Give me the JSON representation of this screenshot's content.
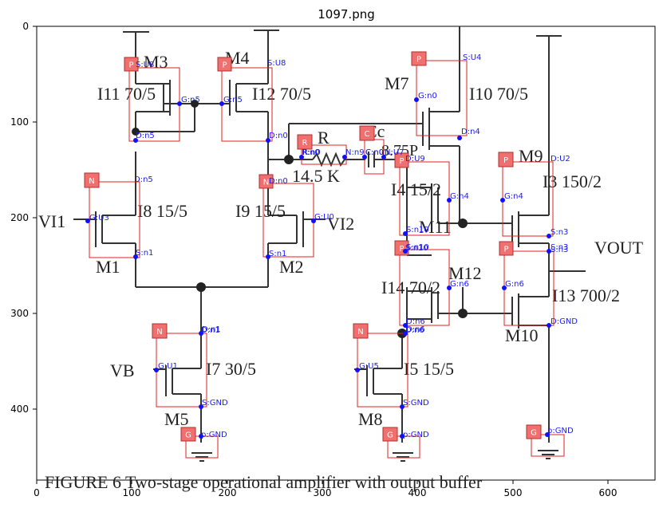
{
  "title": "1097.png",
  "axes": {
    "x_ticks": [
      "0",
      "100",
      "200",
      "300",
      "400",
      "500",
      "600"
    ],
    "y_ticks": [
      "0",
      "100",
      "200",
      "300",
      "400"
    ]
  },
  "caption": {
    "figure_text": "FIGURE 6  Two-stage operational amplifier with output buffer",
    "transistors": [
      "M3",
      "M4",
      "M7",
      "M1",
      "M2",
      "M11",
      "M9",
      "M12",
      "M10",
      "M5",
      "M8"
    ],
    "sizes": [
      "I11 70/5",
      "I12 70/5",
      "I10 70/5",
      "I8 15/5",
      "I9 15/5",
      "I4 15/2",
      "I3 150/2",
      "I14 70/2",
      "I13 700/2",
      "I7 30/5",
      "I5 15/5"
    ],
    "other": [
      "R",
      "14.5 K",
      "Cc",
      "8.75P",
      "VI1",
      "VI2",
      "VOUT",
      "VB"
    ]
  },
  "annotations": {
    "boxes": [
      {
        "tag": "P",
        "label": "S:U8"
      },
      {
        "tag": "P",
        "label": "S:U8"
      },
      {
        "tag": "P",
        "label": "S:U4"
      },
      {
        "tag": "N",
        "label": "D:n5"
      },
      {
        "tag": "N",
        "label": "D:n0"
      },
      {
        "tag": "R",
        "label": "R:n0"
      },
      {
        "tag": "C",
        "label": "C:n0"
      },
      {
        "tag": "P",
        "label": "D:U9"
      },
      {
        "tag": "P",
        "label": "D:U2"
      },
      {
        "tag": "P",
        "label": "S:n10"
      },
      {
        "tag": "P",
        "label": "S:n3"
      },
      {
        "tag": "N",
        "label": "D:n1"
      },
      {
        "tag": "N",
        "label": "D:n6"
      },
      {
        "tag": "G",
        "label": "p:GND"
      },
      {
        "tag": "G",
        "label": "p:GND"
      },
      {
        "tag": "G",
        "label": "p:GND"
      }
    ],
    "pins": [
      "G:n5",
      "D:n5",
      "G:n5",
      "D:n0",
      "G:n0",
      "D:n4",
      "G:U3",
      "S:n1",
      "G:U0",
      "S:n1",
      "R:n0",
      "N:n9",
      "C:n0",
      "N:U7",
      "G:n4",
      "G:n4",
      "S:n10",
      "S:n3",
      "S:n10",
      "S:n3",
      "G:n6",
      "G:n6",
      "D:n6",
      "D:n6",
      "D:GND",
      "D:n1",
      "G:U1",
      "S:GND",
      "G:U5",
      "S:GND",
      "p:GND",
      "p:GND",
      "p:GND"
    ]
  }
}
